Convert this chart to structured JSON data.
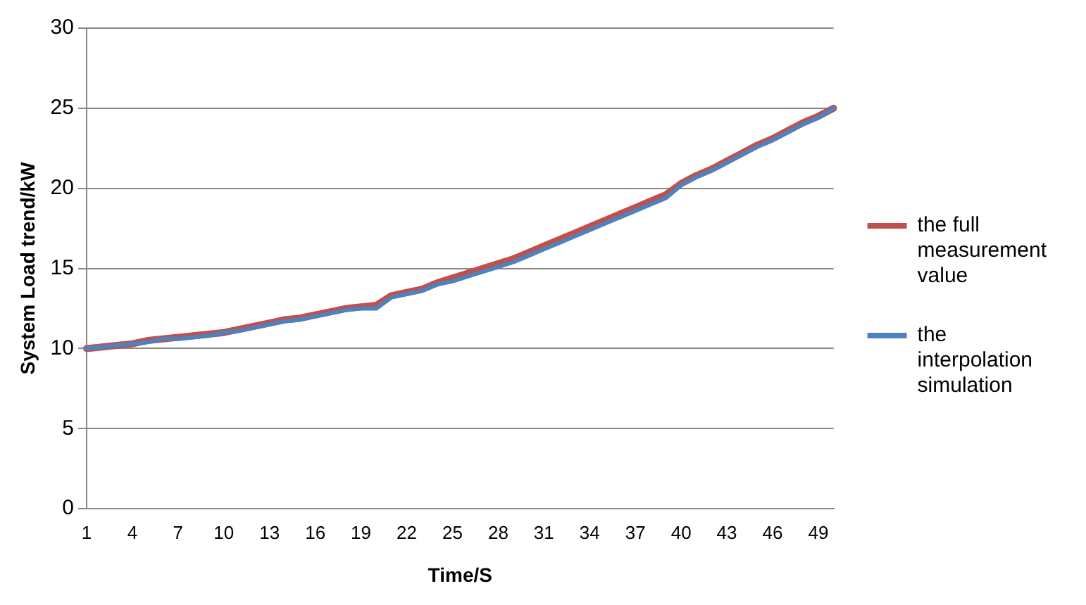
{
  "chart_data": {
    "type": "line",
    "xlabel": "Time/S",
    "ylabel": "System Load trend/kW",
    "categories": [
      "1",
      null,
      null,
      "4",
      null,
      null,
      "7",
      null,
      null,
      "10",
      null,
      null,
      "13",
      null,
      null,
      "16",
      null,
      null,
      "19",
      null,
      null,
      "22",
      null,
      null,
      "25",
      null,
      null,
      "28",
      null,
      null,
      "31",
      null,
      null,
      "34",
      null,
      null,
      "37",
      null,
      null,
      "40",
      null,
      null,
      "43",
      null,
      null,
      "46",
      null,
      null,
      "49",
      null
    ],
    "series": [
      {
        "name": "the full measurement value",
        "color": "#c0504d",
        "values": [
          10.0,
          10.1,
          10.2,
          10.3,
          10.5,
          10.6,
          10.7,
          10.8,
          10.9,
          11.0,
          11.2,
          11.4,
          11.6,
          11.8,
          11.9,
          12.1,
          12.3,
          12.5,
          12.6,
          12.7,
          13.3,
          13.5,
          13.7,
          14.1,
          14.4,
          14.7,
          15.0,
          15.3,
          15.6,
          16.0,
          16.4,
          16.8,
          17.2,
          17.6,
          18.0,
          18.4,
          18.8,
          19.2,
          19.6,
          20.3,
          20.8,
          21.2,
          21.7,
          22.2,
          22.7,
          23.1,
          23.6,
          24.1,
          24.5,
          25.0
        ]
      },
      {
        "name": "the interpolation simulation",
        "color": "#4f81bd",
        "values": [
          10.0,
          10.1,
          10.2,
          10.3,
          10.4,
          10.6,
          10.6,
          10.7,
          10.8,
          11.0,
          11.1,
          11.3,
          11.5,
          11.7,
          11.8,
          12.0,
          12.2,
          12.4,
          12.5,
          12.5,
          13.2,
          13.4,
          13.6,
          14.0,
          14.2,
          14.5,
          14.8,
          15.1,
          15.4,
          15.8,
          16.2,
          16.6,
          17.0,
          17.4,
          17.8,
          18.2,
          18.6,
          19.0,
          19.4,
          20.2,
          20.7,
          21.1,
          21.6,
          22.1,
          22.6,
          23.0,
          23.5,
          24.0,
          24.4,
          25.0
        ]
      }
    ],
    "ylim": [
      0,
      30
    ],
    "yticks": [
      0,
      5,
      10,
      15,
      20,
      25,
      30
    ],
    "grid": "y",
    "legend": "right",
    "marker": "none",
    "line_style": "solid"
  }
}
